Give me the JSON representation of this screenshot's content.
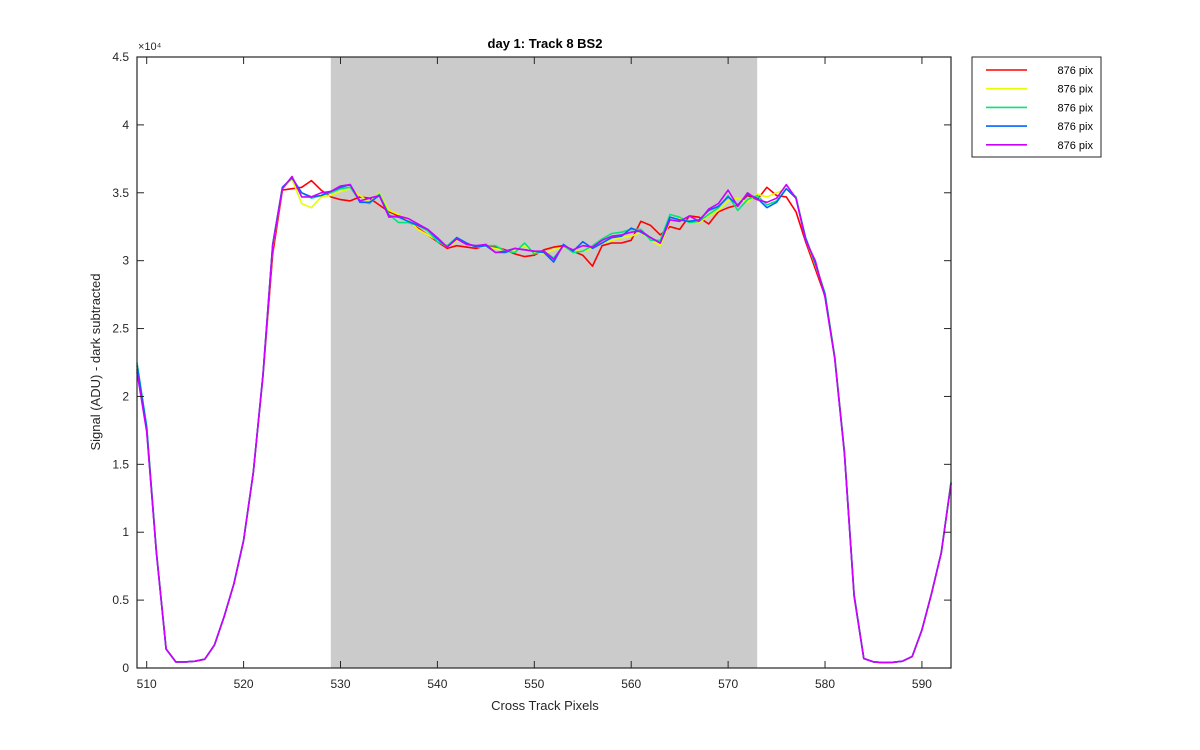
{
  "chart_data": {
    "type": "line",
    "title": "day 1: Track 8  BS2",
    "xlabel": "Cross Track Pixels",
    "ylabel": "Signal (ADU) - dark subtracted",
    "y_multiplier_label": "×10⁴",
    "xlim": [
      509,
      593
    ],
    "ylim": [
      0,
      45000
    ],
    "x_ticks": [
      510,
      520,
      530,
      540,
      550,
      560,
      570,
      580,
      590
    ],
    "y_ticks": [
      0,
      5000,
      10000,
      15000,
      20000,
      25000,
      30000,
      35000,
      40000,
      45000
    ],
    "y_tick_labels": [
      "0",
      "0.5",
      "1",
      "1.5",
      "2",
      "2.5",
      "3",
      "3.5",
      "4",
      "4.5"
    ],
    "grid": false,
    "legend_position": "outside top-right",
    "shaded_region": {
      "x_start": 529,
      "x_end": 573,
      "color": "#cbcbcb"
    },
    "x": [
      509,
      510,
      511,
      512,
      513,
      514,
      515,
      516,
      517,
      518,
      519,
      520,
      521,
      522,
      523,
      524,
      525,
      526,
      527,
      528,
      529,
      530,
      531,
      532,
      533,
      534,
      535,
      536,
      537,
      538,
      539,
      540,
      541,
      542,
      543,
      544,
      545,
      546,
      547,
      548,
      549,
      550,
      551,
      552,
      553,
      554,
      555,
      556,
      557,
      558,
      559,
      560,
      561,
      562,
      563,
      564,
      565,
      566,
      567,
      568,
      569,
      570,
      571,
      572,
      573,
      574,
      575,
      576,
      577,
      578,
      579,
      580,
      581,
      582,
      583,
      584,
      585,
      586,
      587,
      588,
      589,
      590,
      591,
      592,
      593
    ],
    "series": [
      {
        "name": "876 pix",
        "color": "#ff0000",
        "values": [
          22000,
          17500,
          8500,
          1400,
          450,
          450,
          500,
          650,
          1700,
          3800,
          6200,
          9400,
          14400,
          21500,
          30500,
          35200,
          35300,
          35400,
          35900,
          35200,
          34700,
          34500,
          34400,
          34700,
          34600,
          34100,
          33600,
          33300,
          32900,
          32400,
          31900,
          31400,
          30900,
          31100,
          31000,
          30900,
          31100,
          31000,
          30800,
          30500,
          30300,
          30400,
          30800,
          31000,
          31100,
          30700,
          30400,
          29600,
          31100,
          31300,
          31300,
          31500,
          32900,
          32600,
          31900,
          32500,
          32300,
          33300,
          33200,
          32700,
          33600,
          33900,
          34100,
          34800,
          34500,
          35400,
          34800,
          34700,
          33600,
          31400,
          29400,
          27400,
          22900,
          15900,
          5300,
          700,
          450,
          400,
          420,
          500,
          850,
          2800,
          5500,
          8500,
          13600
        ]
      },
      {
        "name": "876 pix",
        "color": "#e6ff00",
        "values": [
          22200,
          17700,
          8600,
          1400,
          450,
          450,
          500,
          650,
          1700,
          3800,
          6200,
          9400,
          14400,
          21600,
          31000,
          35300,
          36000,
          34200,
          33900,
          34700,
          34800,
          35100,
          35300,
          34800,
          34300,
          35000,
          33700,
          33400,
          33000,
          32300,
          31900,
          31500,
          31000,
          31500,
          31300,
          31000,
          31000,
          30900,
          30700,
          30700,
          31100,
          30600,
          30500,
          30800,
          31000,
          30700,
          30700,
          30900,
          31300,
          31500,
          31700,
          31800,
          32100,
          31500,
          31100,
          32900,
          33100,
          32900,
          32800,
          33300,
          33700,
          34400,
          34600,
          34300,
          34900,
          34700,
          35000,
          35300,
          34600,
          31600,
          29700,
          27600,
          23000,
          16000,
          5400,
          700,
          450,
          400,
          420,
          500,
          850,
          2800,
          5500,
          8500,
          13700
        ]
      },
      {
        "name": "876 pix",
        "color": "#00e678",
        "values": [
          22500,
          17800,
          8600,
          1400,
          450,
          450,
          500,
          650,
          1700,
          3800,
          6200,
          9400,
          14400,
          21600,
          31200,
          35400,
          36100,
          35000,
          34600,
          34800,
          35000,
          35300,
          35400,
          34400,
          34200,
          34900,
          33400,
          32800,
          32800,
          32600,
          32200,
          31400,
          31100,
          31700,
          31200,
          31100,
          31100,
          31100,
          30700,
          30600,
          31300,
          30500,
          30700,
          30200,
          31100,
          30600,
          30700,
          31100,
          31600,
          32000,
          32100,
          32300,
          32300,
          31500,
          31500,
          33400,
          33200,
          32800,
          32900,
          33400,
          33900,
          34800,
          33700,
          34500,
          34800,
          34100,
          34400,
          35300,
          34700,
          31600,
          29800,
          27600,
          22900,
          15900,
          5400,
          700,
          450,
          400,
          420,
          500,
          850,
          2800,
          5500,
          8500,
          13700
        ]
      },
      {
        "name": "876 pix",
        "color": "#0066ff",
        "values": [
          22300,
          17700,
          8500,
          1400,
          450,
          450,
          500,
          650,
          1700,
          3800,
          6200,
          9400,
          14400,
          21600,
          31200,
          35400,
          36100,
          35000,
          34700,
          34800,
          35100,
          35400,
          35600,
          34300,
          34300,
          34800,
          33300,
          33200,
          32900,
          32600,
          32300,
          31600,
          31000,
          31700,
          31300,
          31000,
          31100,
          30600,
          30600,
          30900,
          30800,
          30700,
          30600,
          29900,
          31200,
          30700,
          31400,
          30900,
          31300,
          31700,
          31800,
          32400,
          32100,
          31700,
          31300,
          33200,
          33000,
          32900,
          33000,
          33700,
          34000,
          34700,
          34100,
          34900,
          34600,
          33900,
          34300,
          35300,
          34600,
          31700,
          29800,
          27500,
          22900,
          15900,
          5400,
          700,
          450,
          400,
          420,
          500,
          850,
          2800,
          5500,
          8500,
          13600
        ]
      },
      {
        "name": "876 pix",
        "color": "#cc00ff",
        "values": [
          21800,
          17400,
          8500,
          1400,
          450,
          450,
          500,
          650,
          1700,
          3800,
          6200,
          9400,
          14400,
          21600,
          31100,
          35300,
          36200,
          34700,
          34700,
          35000,
          35100,
          35500,
          35600,
          34400,
          34600,
          34800,
          33200,
          33300,
          33100,
          32700,
          32300,
          31700,
          31000,
          31600,
          31200,
          31100,
          31200,
          30600,
          30700,
          30900,
          30800,
          30700,
          30700,
          30100,
          31100,
          30800,
          31100,
          31000,
          31500,
          31800,
          31900,
          32100,
          32200,
          31700,
          31300,
          33000,
          32900,
          33300,
          32900,
          33800,
          34200,
          35200,
          34000,
          35000,
          34500,
          34300,
          34600,
          35600,
          34600,
          31500,
          30000,
          27300,
          22800,
          15800,
          5300,
          700,
          450,
          400,
          420,
          500,
          850,
          2800,
          5500,
          8500,
          13600
        ]
      }
    ]
  }
}
